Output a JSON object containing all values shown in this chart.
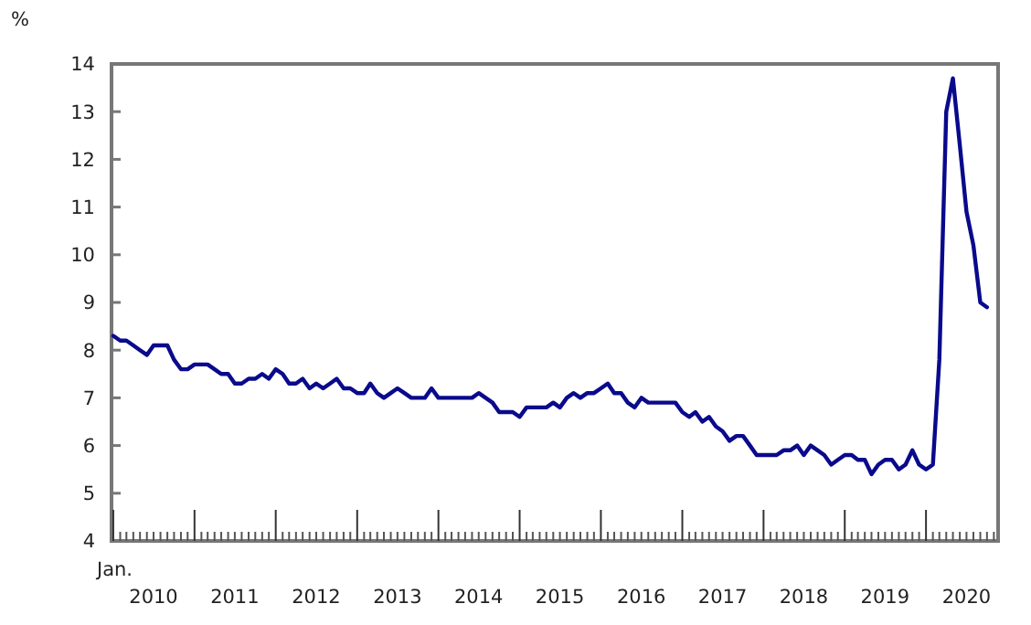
{
  "chart_data": {
    "type": "line",
    "ylabel": "%",
    "annotations": [
      "Jan."
    ],
    "x": [
      "2010-01",
      "2010-02",
      "2010-03",
      "2010-04",
      "2010-05",
      "2010-06",
      "2010-07",
      "2010-08",
      "2010-09",
      "2010-10",
      "2010-11",
      "2010-12",
      "2011-01",
      "2011-02",
      "2011-03",
      "2011-04",
      "2011-05",
      "2011-06",
      "2011-07",
      "2011-08",
      "2011-09",
      "2011-10",
      "2011-11",
      "2011-12",
      "2012-01",
      "2012-02",
      "2012-03",
      "2012-04",
      "2012-05",
      "2012-06",
      "2012-07",
      "2012-08",
      "2012-09",
      "2012-10",
      "2012-11",
      "2012-12",
      "2013-01",
      "2013-02",
      "2013-03",
      "2013-04",
      "2013-05",
      "2013-06",
      "2013-07",
      "2013-08",
      "2013-09",
      "2013-10",
      "2013-11",
      "2013-12",
      "2014-01",
      "2014-02",
      "2014-03",
      "2014-04",
      "2014-05",
      "2014-06",
      "2014-07",
      "2014-08",
      "2014-09",
      "2014-10",
      "2014-11",
      "2014-12",
      "2015-01",
      "2015-02",
      "2015-03",
      "2015-04",
      "2015-05",
      "2015-06",
      "2015-07",
      "2015-08",
      "2015-09",
      "2015-10",
      "2015-11",
      "2015-12",
      "2016-01",
      "2016-02",
      "2016-03",
      "2016-04",
      "2016-05",
      "2016-06",
      "2016-07",
      "2016-08",
      "2016-09",
      "2016-10",
      "2016-11",
      "2016-12",
      "2017-01",
      "2017-02",
      "2017-03",
      "2017-04",
      "2017-05",
      "2017-06",
      "2017-07",
      "2017-08",
      "2017-09",
      "2017-10",
      "2017-11",
      "2017-12",
      "2018-01",
      "2018-02",
      "2018-03",
      "2018-04",
      "2018-05",
      "2018-06",
      "2018-07",
      "2018-08",
      "2018-09",
      "2018-10",
      "2018-11",
      "2018-12",
      "2019-01",
      "2019-02",
      "2019-03",
      "2019-04",
      "2019-05",
      "2019-06",
      "2019-07",
      "2019-08",
      "2019-09",
      "2019-10",
      "2019-11",
      "2019-12",
      "2020-01",
      "2020-02",
      "2020-03",
      "2020-04",
      "2020-05",
      "2020-06",
      "2020-07",
      "2020-08",
      "2020-09",
      "2020-10"
    ],
    "series": [
      {
        "color": "#0a0a8c",
        "values": [
          8.3,
          8.2,
          8.2,
          8.1,
          8.0,
          7.9,
          8.1,
          8.1,
          8.1,
          7.8,
          7.6,
          7.6,
          7.7,
          7.7,
          7.7,
          7.6,
          7.5,
          7.5,
          7.3,
          7.3,
          7.4,
          7.4,
          7.5,
          7.4,
          7.6,
          7.5,
          7.3,
          7.3,
          7.4,
          7.2,
          7.3,
          7.2,
          7.3,
          7.4,
          7.2,
          7.2,
          7.1,
          7.1,
          7.3,
          7.1,
          7.0,
          7.1,
          7.2,
          7.1,
          7.0,
          7.0,
          7.0,
          7.2,
          7.0,
          7.0,
          7.0,
          7.0,
          7.0,
          7.0,
          7.1,
          7.0,
          6.9,
          6.7,
          6.7,
          6.7,
          6.6,
          6.8,
          6.8,
          6.8,
          6.8,
          6.9,
          6.8,
          7.0,
          7.1,
          7.0,
          7.1,
          7.1,
          7.2,
          7.3,
          7.1,
          7.1,
          6.9,
          6.8,
          7.0,
          6.9,
          6.9,
          6.9,
          6.9,
          6.9,
          6.7,
          6.6,
          6.7,
          6.5,
          6.6,
          6.4,
          6.3,
          6.1,
          6.2,
          6.2,
          6.0,
          5.8,
          5.8,
          5.8,
          5.8,
          5.9,
          5.9,
          6.0,
          5.8,
          6.0,
          5.9,
          5.8,
          5.6,
          5.7,
          5.8,
          5.8,
          5.7,
          5.7,
          5.4,
          5.6,
          5.7,
          5.7,
          5.5,
          5.6,
          5.9,
          5.6,
          5.5,
          5.6,
          7.8,
          13.0,
          13.7,
          12.3,
          10.9,
          10.2,
          9.0,
          8.9
        ]
      }
    ],
    "xlim": [
      "2009-12-24",
      "2020-11-20"
    ],
    "xticks": [
      {
        "value": "2010-07-01",
        "label": "2010"
      },
      {
        "value": "2011-07-01",
        "label": "2011"
      },
      {
        "value": "2012-07-01",
        "label": "2012"
      },
      {
        "value": "2013-07-01",
        "label": "2013"
      },
      {
        "value": "2014-07-01",
        "label": "2014"
      },
      {
        "value": "2015-07-01",
        "label": "2015"
      },
      {
        "value": "2016-07-01",
        "label": "2016"
      },
      {
        "value": "2017-07-01",
        "label": "2017"
      },
      {
        "value": "2018-07-01",
        "label": "2018"
      },
      {
        "value": "2019-07-01",
        "label": "2019"
      },
      {
        "value": "2020-07-01",
        "label": "2020"
      }
    ],
    "ylim": [
      4,
      14
    ],
    "yticks": [
      4,
      5,
      6,
      7,
      8,
      9,
      10,
      11,
      12,
      13,
      14
    ],
    "marker": "none",
    "line_style": "solid",
    "grid": false
  }
}
